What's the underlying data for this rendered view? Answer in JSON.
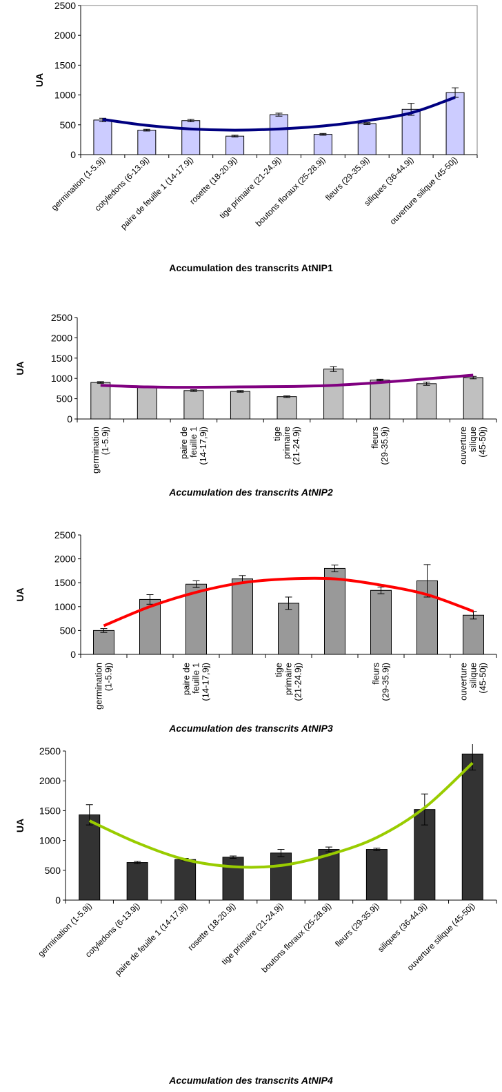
{
  "chart_data": [
    {
      "type": "bar",
      "title": "Accumulation des transcrits AtNIP1",
      "ylabel": "UA",
      "ylim": [
        0,
        2500
      ],
      "yticks": [
        0,
        500,
        1000,
        1500,
        2000,
        2500
      ],
      "categories": [
        "germination (1-5.9j)",
        "cotyledons (6-13.9j)",
        "paire de feuille 1 (14-17.9j)",
        "rosette (18-20.9j)",
        "tige primaire (21-24.9j)",
        "boutons floraux (25-28.9j)",
        "fleurs (29-35.9j)",
        "siliques (36-44.9j)",
        "ouverture silique (45-50j)"
      ],
      "values": [
        580,
        410,
        570,
        310,
        670,
        340,
        520,
        760,
        1040
      ],
      "errors": [
        30,
        15,
        20,
        15,
        25,
        15,
        15,
        100,
        80
      ],
      "trend": [
        590,
        490,
        430,
        410,
        430,
        480,
        570,
        700,
        960
      ],
      "colors": {
        "bar": "#ccccff",
        "trend": "#000080"
      }
    },
    {
      "type": "bar",
      "title": "Accumulation des transcrits AtNIP2",
      "ylabel": "UA",
      "ylim": [
        0,
        2500
      ],
      "yticks": [
        0,
        500,
        1000,
        1500,
        2000,
        2500
      ],
      "categories": [
        "germination (1-5.9j)",
        "",
        "paire de feuille 1 (14-17,9j)",
        "",
        "tige primaire (21-24.9j)",
        "",
        "fleurs (29-35.9j)",
        "",
        "ouverture silique (45-50j)"
      ],
      "values": [
        900,
        790,
        700,
        680,
        550,
        1230,
        960,
        870,
        1020
      ],
      "errors": [
        20,
        0,
        20,
        20,
        20,
        60,
        20,
        40,
        30
      ],
      "trend": [
        830,
        790,
        780,
        790,
        800,
        830,
        900,
        990,
        1080
      ],
      "colors": {
        "bar": "#c0c0c0",
        "trend": "#800080"
      }
    },
    {
      "type": "bar",
      "title": "Accumulation des transcrits AtNIP3",
      "ylabel": "UA",
      "ylim": [
        0,
        2500
      ],
      "yticks": [
        0,
        500,
        1000,
        1500,
        2000,
        2500
      ],
      "categories": [
        "germination (1-5.9j)",
        "",
        "paire de feuille 1 (14-17,9j)",
        "",
        "tige primaire (21-24.9j)",
        "",
        "fleurs (29-35.9j)",
        "",
        "ouverture silique (45-50j)"
      ],
      "values": [
        500,
        1150,
        1470,
        1580,
        1070,
        1800,
        1340,
        1540,
        820
      ],
      "errors": [
        40,
        100,
        70,
        70,
        130,
        70,
        70,
        340,
        80
      ],
      "trend": [
        600,
        1000,
        1300,
        1500,
        1580,
        1580,
        1450,
        1250,
        900
      ],
      "colors": {
        "bar": "#999999",
        "trend": "#ff0000"
      }
    },
    {
      "type": "bar",
      "title": "Accumulation des transcrits AtNIP4",
      "ylabel": "UA",
      "ylim": [
        0,
        2500
      ],
      "yticks": [
        0,
        500,
        1000,
        1500,
        2000,
        2500
      ],
      "categories": [
        "germination (1-5.9j)",
        "cotyledons (6-13.9j)",
        "paire de feuille 1 (14-17.9j)",
        "rosette (18-20.9j)",
        "tige primaire (21-24.9j)",
        "boutons floraux (25-28.9j)",
        "fleurs (29-35.9j)",
        "siliques (36-44.9j)",
        "ouverture silique (45-50j)"
      ],
      "values": [
        1430,
        630,
        680,
        720,
        790,
        850,
        850,
        1520,
        2450
      ],
      "errors": [
        170,
        20,
        20,
        20,
        60,
        40,
        20,
        260,
        270
      ],
      "trend": [
        1330,
        960,
        680,
        560,
        580,
        760,
        1050,
        1550,
        2300
      ],
      "colors": {
        "bar": "#333333",
        "trend": "#99cc00"
      }
    }
  ]
}
